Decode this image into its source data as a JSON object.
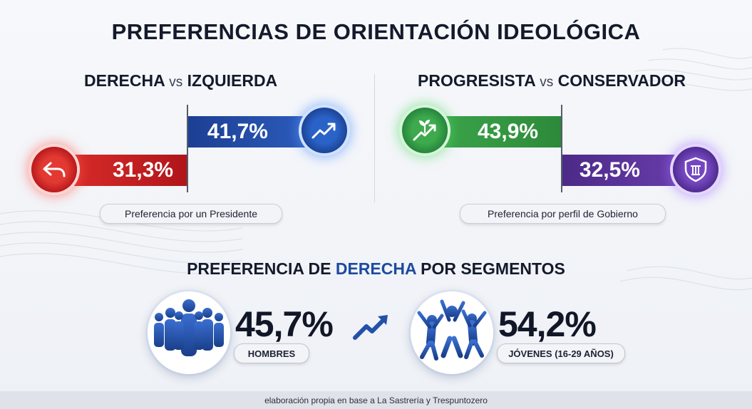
{
  "title": "PREFERENCIAS DE ORIENTACIÓN IDEOLÓGICA",
  "left_panel": {
    "heading_a": "DERECHA",
    "heading_vs": "vs",
    "heading_b": "IZQUIERDA",
    "caption": "Preferencia por un Presidente"
  },
  "right_panel": {
    "heading_a": "PROGRESISTA",
    "heading_vs": "vs",
    "heading_b": "CONSERVADOR",
    "caption": "Preferencia por perfil de Gobierno"
  },
  "segments": {
    "title_a": "PREFERENCIA DE",
    "title_hl": "DERECHA",
    "title_b": "POR SEGMENTOS"
  },
  "footer": "elaboración propia en base a La Sastrería y Trespuntozero",
  "colors": {
    "derecha": "#2e5fc0",
    "izquierda": "#d0222a",
    "progresista": "#3ea84d",
    "conservador": "#5e36a0"
  },
  "chart_data": [
    {
      "type": "bar",
      "title": "DERECHA vs IZQUIERDA",
      "caption": "Preferencia por un Presidente",
      "categories": [
        "DERECHA",
        "IZQUIERDA"
      ],
      "values": [
        41.7,
        31.3
      ],
      "labels": [
        "41,7%",
        "31,3%"
      ],
      "icons": [
        "trend-up-icon",
        "arrow-back-icon"
      ]
    },
    {
      "type": "bar",
      "title": "PROGRESISTA vs CONSERVADOR",
      "caption": "Preferencia por perfil de Gobierno",
      "categories": [
        "PROGRESISTA",
        "CONSERVADOR"
      ],
      "values": [
        43.9,
        32.5
      ],
      "labels": [
        "43,9%",
        "32,5%"
      ],
      "icons": [
        "sprout-growth-icon",
        "shield-pillar-icon"
      ]
    },
    {
      "type": "table",
      "title": "PREFERENCIA DE DERECHA POR SEGMENTOS",
      "categories": [
        "HOMBRES",
        "JÓVENES (16-29 AÑOS)"
      ],
      "values": [
        45.7,
        54.2
      ],
      "labels": [
        "45,7%",
        "54,2%"
      ],
      "icons": [
        "people-group-icon",
        "jumping-youth-icon"
      ]
    }
  ]
}
